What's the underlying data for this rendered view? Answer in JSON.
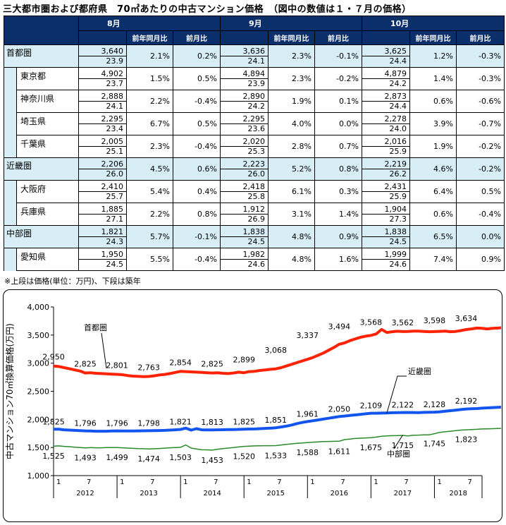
{
  "title": "三大都市圏および都府県　70㎡あたりの中古マンション価格　（図中の数値は１・７月の価格）",
  "table": {
    "months": [
      "8月",
      "9月",
      "10月"
    ],
    "sub_headers": [
      "前年同月比",
      "前月比"
    ],
    "rows": [
      {
        "name": "首都圏",
        "type": "region",
        "data": [
          [
            "3,640",
            "23.9",
            "2.1%",
            "0.2%"
          ],
          [
            "3,636",
            "24.1",
            "2.3%",
            "-0.1%"
          ],
          [
            "3,625",
            "24.4",
            "1.2%",
            "-0.3%"
          ]
        ]
      },
      {
        "name": "東京都",
        "type": "pref",
        "data": [
          [
            "4,902",
            "23.7",
            "1.5%",
            "0.5%"
          ],
          [
            "4,894",
            "23.9",
            "2.3%",
            "-0.2%"
          ],
          [
            "4,879",
            "24.2",
            "1.4%",
            "-0.3%"
          ]
        ]
      },
      {
        "name": "神奈川県",
        "type": "pref",
        "data": [
          [
            "2,888",
            "24.1",
            "2.2%",
            "-0.4%"
          ],
          [
            "2,890",
            "24.2",
            "1.9%",
            "0.1%"
          ],
          [
            "2,873",
            "24.4",
            "0.6%",
            "-0.6%"
          ]
        ]
      },
      {
        "name": "埼玉県",
        "type": "pref",
        "data": [
          [
            "2,295",
            "23.4",
            "6.7%",
            "0.5%"
          ],
          [
            "2,295",
            "23.6",
            "4.0%",
            "0.0%"
          ],
          [
            "2,278",
            "24.0",
            "3.9%",
            "-0.7%"
          ]
        ]
      },
      {
        "name": "千葉県",
        "type": "pref",
        "data": [
          [
            "2,005",
            "25.1",
            "2.3%",
            "-0.4%"
          ],
          [
            "2,020",
            "25.3",
            "2.8%",
            "0.7%"
          ],
          [
            "2,016",
            "25.9",
            "1.9%",
            "-0.2%"
          ]
        ]
      },
      {
        "name": "近畿圏",
        "type": "region",
        "data": [
          [
            "2,206",
            "26.0",
            "4.5%",
            "0.6%"
          ],
          [
            "2,223",
            "26.0",
            "5.2%",
            "0.8%"
          ],
          [
            "2,219",
            "26.2",
            "4.6%",
            "-0.2%"
          ]
        ]
      },
      {
        "name": "大阪府",
        "type": "pref",
        "data": [
          [
            "2,410",
            "25.7",
            "5.4%",
            "0.4%"
          ],
          [
            "2,418",
            "25.8",
            "6.1%",
            "0.3%"
          ],
          [
            "2,431",
            "25.9",
            "6.4%",
            "0.5%"
          ]
        ]
      },
      {
        "name": "兵庫県",
        "type": "pref",
        "data": [
          [
            "1,885",
            "27.1",
            "2.2%",
            "0.8%"
          ],
          [
            "1,912",
            "26.9",
            "3.1%",
            "1.4%"
          ],
          [
            "1,904",
            "27.3",
            "0.6%",
            "-0.4%"
          ]
        ]
      },
      {
        "name": "中部圏",
        "type": "region",
        "data": [
          [
            "1,821",
            "24.3",
            "5.7%",
            "-0.1%"
          ],
          [
            "1,838",
            "24.5",
            "4.8%",
            "0.9%"
          ],
          [
            "1,838",
            "24.5",
            "6.5%",
            "0.0%"
          ]
        ]
      },
      {
        "name": "愛知県",
        "type": "pref",
        "data": [
          [
            "1,950",
            "24.5",
            "5.5%",
            "-0.4%"
          ],
          [
            "1,982",
            "24.6",
            "4.8%",
            "1.6%"
          ],
          [
            "1,999",
            "24.6",
            "7.4%",
            "0.9%"
          ]
        ]
      }
    ]
  },
  "note": "※上段は価格(単位：万円)、下段は築年",
  "chart_data": {
    "type": "line",
    "ylabel": "中古マンション70㎡換算価格(万円)",
    "ylim": [
      1000,
      4000
    ],
    "yticks": [
      1000,
      1500,
      2000,
      2500,
      3000,
      3500,
      4000
    ],
    "ytick_labels": [
      "1,000",
      "1,500",
      "2,000",
      "2,500",
      "3,000",
      "3,500",
      "4,000"
    ],
    "years": [
      "2012",
      "2013",
      "2014",
      "2015",
      "2016",
      "2017",
      "2018"
    ],
    "month_ticks": [
      "1",
      "7"
    ],
    "x_range_months": [
      0,
      81
    ],
    "grid": false,
    "series": [
      {
        "name": "首都圏",
        "color": "#ff2200",
        "width": 4,
        "values": [
          2950,
          2940,
          2920,
          2900,
          2880,
          2860,
          2825,
          2830,
          2820,
          2815,
          2810,
          2805,
          2801,
          2795,
          2780,
          2770,
          2765,
          2760,
          2763,
          2775,
          2790,
          2800,
          2815,
          2835,
          2854,
          2850,
          2845,
          2840,
          2835,
          2830,
          2825,
          2830,
          2820,
          2815,
          2825,
          2840,
          2830,
          2850,
          2855,
          2870,
          2880,
          2890,
          2899,
          2920,
          2950,
          2980,
          3010,
          3040,
          3068,
          3100,
          3140,
          3180,
          3230,
          3280,
          3337,
          3360,
          3400,
          3430,
          3460,
          3480,
          3494,
          3520,
          3600,
          3545,
          3560,
          3568,
          3562,
          3565,
          3570,
          3570,
          3565,
          3560,
          3562,
          3566,
          3570,
          3560,
          3565,
          3580,
          3598,
          3610,
          3625,
          3620,
          3610,
          3620,
          3625,
          3634,
          3630,
          3625,
          3640,
          3635,
          3630,
          3620
        ],
        "labels": [
          [
            0,
            2950
          ],
          [
            6,
            2825
          ],
          [
            12,
            2801
          ],
          [
            18,
            2763
          ],
          [
            24,
            2854
          ],
          [
            30,
            2825
          ],
          [
            36,
            2899
          ],
          [
            42,
            3068
          ],
          [
            48,
            3337
          ],
          [
            54,
            3494
          ],
          [
            60,
            3568
          ],
          [
            66,
            3562
          ],
          [
            72,
            3598
          ],
          [
            78,
            3634
          ]
        ]
      },
      {
        "name": "近畿圏",
        "color": "#1155ee",
        "width": 4,
        "values": [
          1825,
          1825,
          1815,
          1810,
          1805,
          1800,
          1796,
          1795,
          1790,
          1790,
          1790,
          1795,
          1796,
          1795,
          1795,
          1795,
          1796,
          1797,
          1798,
          1800,
          1802,
          1804,
          1810,
          1815,
          1821,
          1845,
          1810,
          1835,
          1815,
          1813,
          1813,
          1815,
          1816,
          1818,
          1820,
          1822,
          1825,
          1828,
          1830,
          1835,
          1840,
          1845,
          1851,
          1865,
          1880,
          1900,
          1925,
          1945,
          1961,
          1975,
          1990,
          2005,
          2020,
          2035,
          2050,
          2060,
          2070,
          2080,
          2090,
          2100,
          2109,
          2110,
          2112,
          2115,
          2118,
          2120,
          2122,
          2124,
          2122,
          2120,
          2125,
          2127,
          2128,
          2135,
          2145,
          2155,
          2165,
          2175,
          2185,
          2190,
          2192,
          2200,
          2205,
          2210,
          2215,
          2220,
          2222,
          2225
        ],
        "labels": [
          [
            0,
            1825
          ],
          [
            6,
            1796
          ],
          [
            12,
            1796
          ],
          [
            18,
            1798
          ],
          [
            24,
            1821
          ],
          [
            30,
            1813
          ],
          [
            36,
            1825
          ],
          [
            42,
            1851
          ],
          [
            48,
            1961
          ],
          [
            54,
            2050
          ],
          [
            60,
            2109
          ],
          [
            66,
            2122
          ],
          [
            72,
            2128
          ],
          [
            78,
            2192
          ]
        ]
      },
      {
        "name": "中部圏",
        "color": "#2a8a2a",
        "width": 1.5,
        "values": [
          1525,
          1528,
          1520,
          1515,
          1505,
          1500,
          1493,
          1498,
          1495,
          1495,
          1498,
          1500,
          1499,
          1495,
          1490,
          1485,
          1480,
          1478,
          1474,
          1478,
          1482,
          1488,
          1495,
          1500,
          1503,
          1545,
          1490,
          1475,
          1460,
          1458,
          1453,
          1470,
          1480,
          1490,
          1500,
          1510,
          1520,
          1525,
          1528,
          1530,
          1532,
          1532,
          1533,
          1545,
          1555,
          1565,
          1575,
          1580,
          1588,
          1595,
          1600,
          1605,
          1608,
          1610,
          1611,
          1640,
          1650,
          1660,
          1665,
          1670,
          1675,
          1685,
          1700,
          1705,
          1710,
          1712,
          1715,
          1705,
          1718,
          1720,
          1725,
          1725,
          1745,
          1770,
          1780,
          1790,
          1800,
          1810,
          1815,
          1820,
          1823,
          1830,
          1832,
          1835,
          1838,
          1840,
          1842,
          1845
        ],
        "labels": [
          [
            0,
            1525
          ],
          [
            6,
            1493
          ],
          [
            12,
            1499
          ],
          [
            18,
            1474
          ],
          [
            24,
            1503
          ],
          [
            30,
            1453
          ],
          [
            36,
            1520
          ],
          [
            42,
            1533
          ],
          [
            48,
            1588
          ],
          [
            54,
            1611
          ],
          [
            60,
            1675
          ],
          [
            66,
            1715
          ],
          [
            72,
            1745
          ],
          [
            78,
            1823
          ]
        ]
      }
    ],
    "legend_annotations": [
      {
        "series": "首都圏",
        "text": "首都圏"
      },
      {
        "series": "近畿圏",
        "text": "近畿圏"
      },
      {
        "series": "中部圏",
        "text": "中部圏"
      }
    ]
  }
}
